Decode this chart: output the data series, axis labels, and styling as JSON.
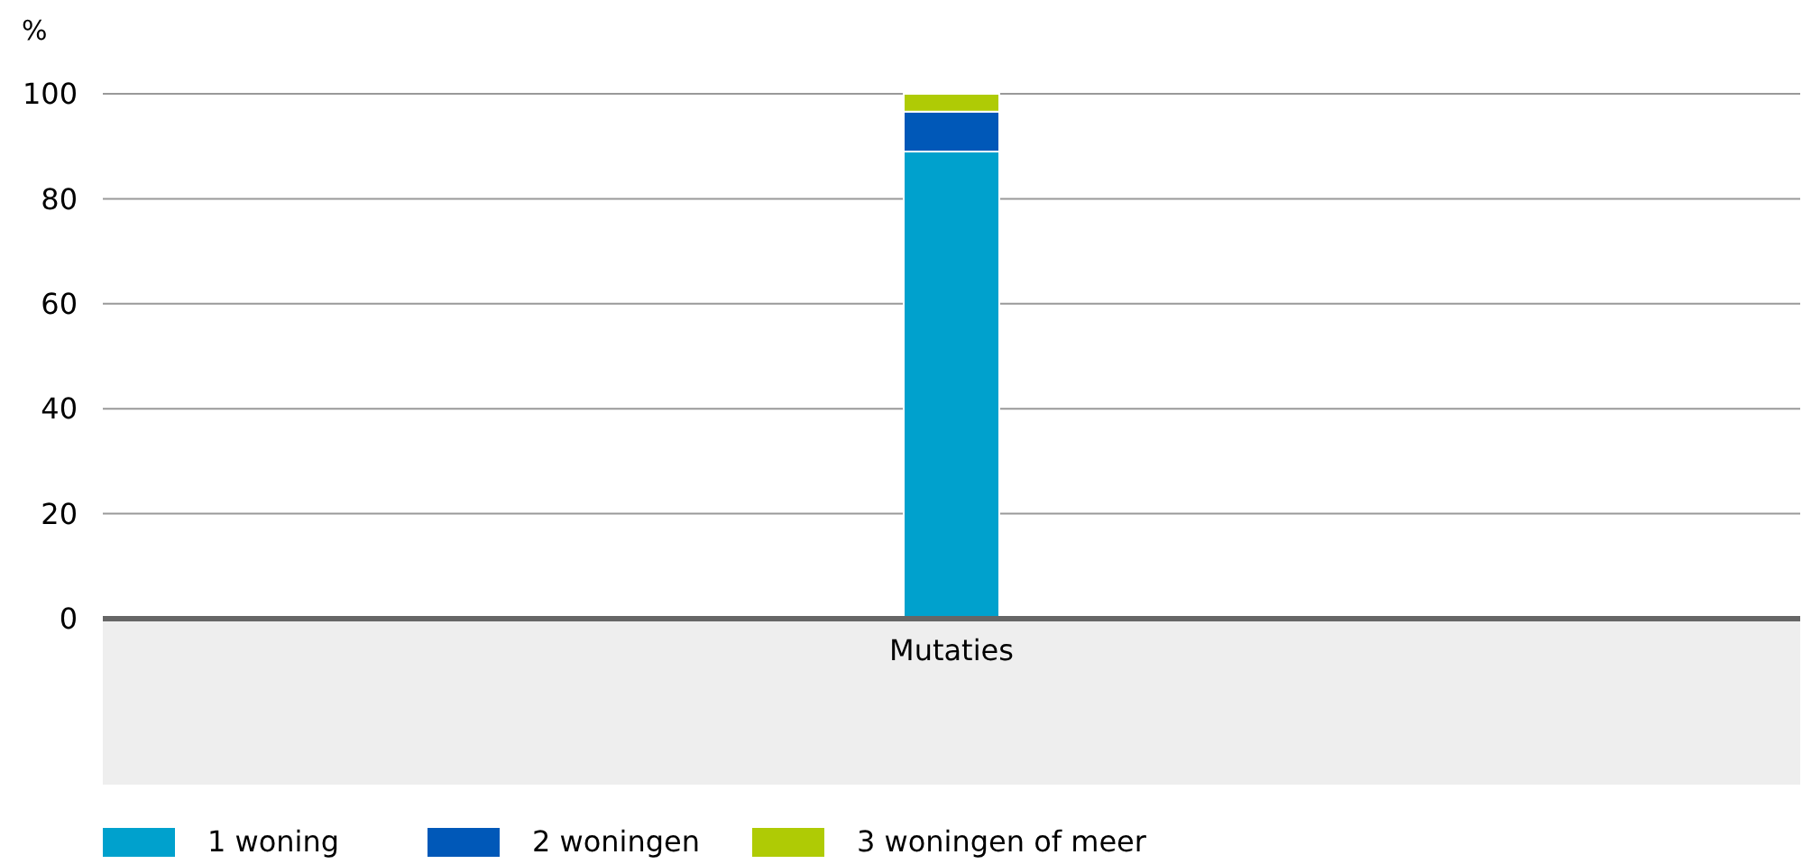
{
  "chart_data": {
    "type": "bar",
    "ylabel": "%",
    "categories": [
      "Mutaties"
    ],
    "stacked": true,
    "series": [
      {
        "name": "1 woning",
        "color": "#00a1cd",
        "values": [
          89
        ]
      },
      {
        "name": "2 woningen",
        "color": "#0058b8",
        "values": [
          7.6
        ]
      },
      {
        "name": "3 woningen of meer",
        "color": "#afcb05",
        "values": [
          3.4
        ]
      }
    ],
    "ylim": [
      0,
      100
    ],
    "yticks": [
      0,
      20,
      40,
      60,
      80,
      100
    ],
    "grid": "y",
    "legend": "bottom"
  }
}
